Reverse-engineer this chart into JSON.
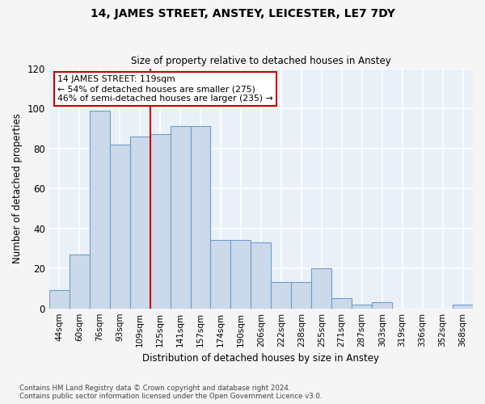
{
  "title": "14, JAMES STREET, ANSTEY, LEICESTER, LE7 7DY",
  "subtitle": "Size of property relative to detached houses in Anstey",
  "xlabel": "Distribution of detached houses by size in Anstey",
  "ylabel": "Number of detached properties",
  "categories": [
    "44sqm",
    "60sqm",
    "76sqm",
    "93sqm",
    "109sqm",
    "125sqm",
    "141sqm",
    "157sqm",
    "174sqm",
    "190sqm",
    "206sqm",
    "222sqm",
    "238sqm",
    "255sqm",
    "271sqm",
    "287sqm",
    "303sqm",
    "319sqm",
    "336sqm",
    "352sqm",
    "368sqm"
  ],
  "values": [
    9,
    27,
    99,
    82,
    86,
    87,
    91,
    91,
    34,
    34,
    33,
    13,
    13,
    20,
    5,
    2,
    3,
    0,
    0,
    0,
    2
  ],
  "bar_color": "#ccd9eb",
  "bar_edge_color": "#6c9ec8",
  "vline_x": 4.5,
  "vline_color": "#cc0000",
  "annotation_text": "14 JAMES STREET: 119sqm\n← 54% of detached houses are smaller (275)\n46% of semi-detached houses are larger (235) →",
  "annotation_box_color": "white",
  "annotation_box_edge": "#cc0000",
  "ylim": [
    0,
    120
  ],
  "yticks": [
    0,
    20,
    40,
    60,
    80,
    100,
    120
  ],
  "footnote": "Contains HM Land Registry data © Crown copyright and database right 2024.\nContains public sector information licensed under the Open Government Licence v3.0.",
  "bg_color": "#eaf0f8",
  "fig_bg_color": "#f5f5f5",
  "grid_color": "#ffffff"
}
